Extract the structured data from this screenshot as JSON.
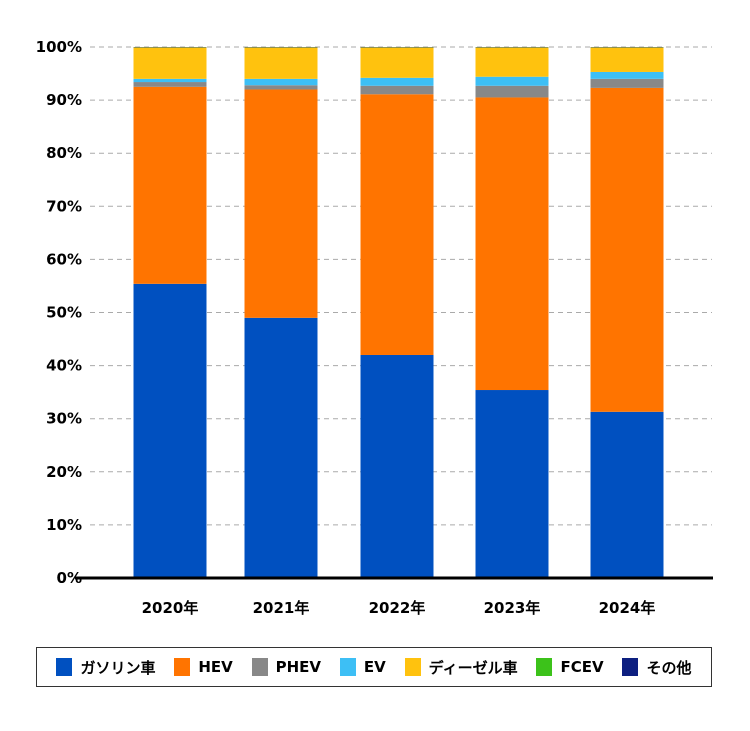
{
  "chart_data": {
    "type": "bar",
    "stacked": true,
    "categories": [
      "2020年",
      "2021年",
      "2022年",
      "2023年",
      "2024年"
    ],
    "ylim": [
      0,
      100
    ],
    "yticks": [
      "0%",
      "10%",
      "20%",
      "30%",
      "40%",
      "50%",
      "60%",
      "70%",
      "80%",
      "90%",
      "100%"
    ],
    "grid": true,
    "legend_position": "bottom",
    "series": [
      {
        "name": "ガソリン車",
        "color": "#0050c0",
        "values": [
          55.4,
          49.0,
          42.0,
          35.4,
          31.3
        ]
      },
      {
        "name": "HEV",
        "color": "#ff7400",
        "values": [
          37.1,
          43.0,
          49.1,
          55.1,
          61.0
        ]
      },
      {
        "name": "PHEV",
        "color": "#888888",
        "values": [
          0.9,
          0.8,
          1.6,
          2.2,
          1.7
        ]
      },
      {
        "name": "EV",
        "color": "#3dbff5",
        "values": [
          0.6,
          1.2,
          1.5,
          1.7,
          1.3
        ]
      },
      {
        "name": "ディーゼル車",
        "color": "#ffc20e",
        "values": [
          5.9,
          5.9,
          5.7,
          5.5,
          4.6
        ]
      },
      {
        "name": "FCEV",
        "color": "#3cc21a",
        "values": [
          0.05,
          0.05,
          0.05,
          0.05,
          0.05
        ]
      },
      {
        "name": "その他",
        "color": "#0d1f80",
        "values": [
          0.05,
          0.05,
          0.05,
          0.05,
          0.05
        ]
      }
    ]
  }
}
